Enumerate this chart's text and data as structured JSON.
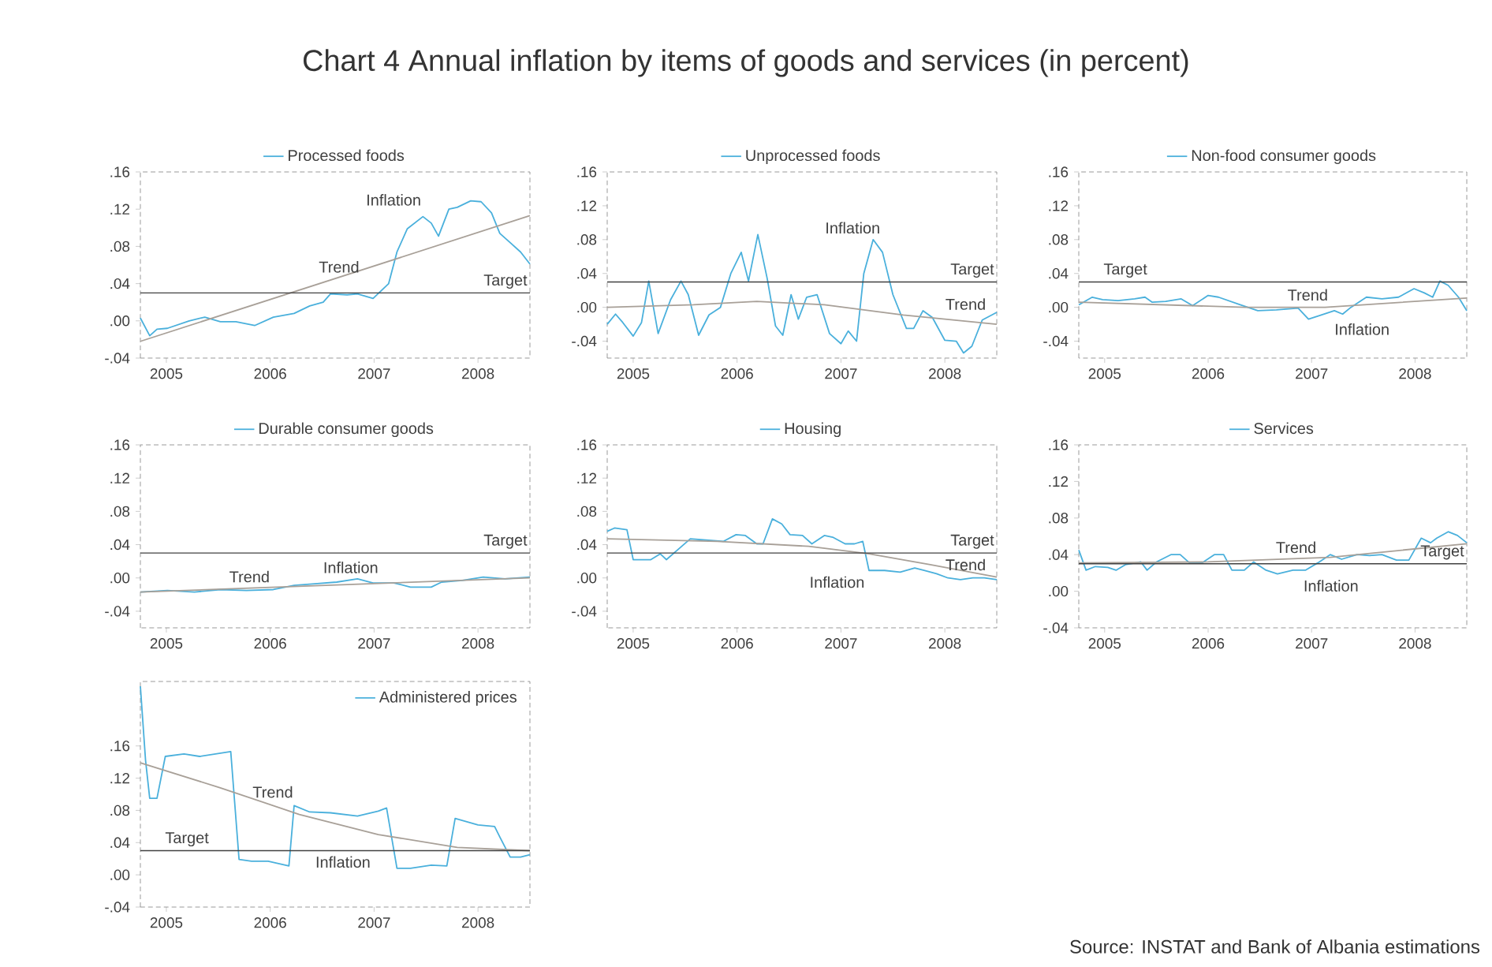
{
  "chart_data": [
    {
      "type": "line",
      "title": "Chart 4 Annual inflation by items of goods and services (in percent)",
      "legend": "top",
      "xlim": [
        2005.25,
        2009.0
      ],
      "ylim": [
        -0.04,
        0.16
      ],
      "xticks": [
        {
          "value": 2005.5,
          "label": "2005"
        },
        {
          "value": 2006.5,
          "label": "2006"
        },
        {
          "value": 2007.5,
          "label": "2007"
        },
        {
          "value": 2008.5,
          "label": "2008"
        }
      ],
      "yticks": [
        {
          "value": -0.04,
          "label": "-.04"
        },
        {
          "value": 0,
          "label": ".00"
        },
        {
          "value": 0.04,
          "label": ".04"
        },
        {
          "value": 0.08,
          "label": ".08"
        },
        {
          "value": 0.12,
          "label": ".12"
        },
        {
          "value": 0.16,
          "label": ".16"
        }
      ],
      "series": [
        {
          "name": "Processed foods",
          "color": "#4ab0dc",
          "x": [
            2005.25,
            2005.34,
            2005.41,
            2005.51,
            2005.72,
            2005.87,
            2006.02,
            2006.17,
            2006.35,
            2006.53,
            2006.73,
            2006.88,
            2007.01,
            2007.08,
            2007.24,
            2007.34,
            2007.49,
            2007.64,
            2007.72,
            2007.82,
            2007.97,
            2008.05,
            2008.12,
            2008.22,
            2008.3,
            2008.43,
            2008.53,
            2008.63,
            2008.71,
            2008.81,
            2008.91,
            2009.0
          ],
          "values": [
            0.003,
            -0.016,
            -0.009,
            -0.008,
            0.0,
            0.004,
            -0.001,
            -0.001,
            -0.005,
            0.004,
            0.008,
            0.016,
            0.02,
            0.029,
            0.028,
            0.029,
            0.024,
            0.04,
            0.074,
            0.099,
            0.112,
            0.105,
            0.091,
            0.12,
            0.122,
            0.129,
            0.128,
            0.116,
            0.094,
            0.084,
            0.074,
            0.061
          ]
        },
        {
          "color": "#a8a098",
          "x": [
            2005.25,
            2009.0
          ],
          "values": [
            -0.022,
            0.113
          ]
        }
      ],
      "ref_lines": [
        {
          "axis": "y",
          "value": 0.03,
          "label": "Target",
          "color": "#404040"
        }
      ],
      "annotations": [
        "Inflation",
        "Trend"
      ]
    },
    {
      "type": "line",
      "legend": "top",
      "xlim": [
        2005.25,
        2009.0
      ],
      "ylim": [
        -0.06,
        0.16
      ],
      "xticks": [
        {
          "value": 2005.5,
          "label": "2005"
        },
        {
          "value": 2006.5,
          "label": "2006"
        },
        {
          "value": 2007.5,
          "label": "2007"
        },
        {
          "value": 2008.5,
          "label": "2008"
        }
      ],
      "yticks": [
        {
          "value": -0.04,
          "label": "-.04"
        },
        {
          "value": 0,
          "label": ".00"
        },
        {
          "value": 0.04,
          "label": ".04"
        },
        {
          "value": 0.08,
          "label": ".08"
        },
        {
          "value": 0.12,
          "label": ".12"
        },
        {
          "value": 0.16,
          "label": ".16"
        }
      ],
      "series": [
        {
          "name": "Unprocessed foods",
          "color": "#4ab0dc",
          "x": [
            2005.25,
            2005.33,
            2005.4,
            2005.5,
            2005.58,
            2005.65,
            2005.74,
            2005.86,
            2005.96,
            2006.03,
            2006.13,
            2006.23,
            2006.34,
            2006.44,
            2006.54,
            2006.61,
            2006.7,
            2006.79,
            2006.87,
            2006.94,
            2007.02,
            2007.09,
            2007.17,
            2007.27,
            2007.39,
            2007.5,
            2007.57,
            2007.65,
            2007.72,
            2007.81,
            2007.9,
            2008.0,
            2008.13,
            2008.2,
            2008.29,
            2008.38,
            2008.5,
            2008.61,
            2008.68,
            2008.76,
            2008.86,
            2009.0
          ],
          "values": [
            -0.02,
            -0.008,
            -0.018,
            -0.034,
            -0.018,
            0.031,
            -0.031,
            0.009,
            0.031,
            0.015,
            -0.033,
            -0.009,
            0.0,
            0.04,
            0.065,
            0.031,
            0.086,
            0.034,
            -0.022,
            -0.033,
            0.015,
            -0.014,
            0.012,
            0.015,
            -0.031,
            -0.043,
            -0.028,
            -0.04,
            0.04,
            0.08,
            0.065,
            0.015,
            -0.025,
            -0.025,
            -0.004,
            -0.012,
            -0.039,
            -0.04,
            -0.054,
            -0.046,
            -0.015,
            -0.006
          ]
        },
        {
          "color": "#a8a098",
          "x": [
            2005.25,
            2006.08,
            2006.69,
            2007.34,
            2008.1,
            2009.0
          ],
          "values": [
            0.0,
            0.003,
            0.007,
            0.003,
            -0.009,
            -0.02
          ]
        }
      ],
      "ref_lines": [
        {
          "axis": "y",
          "value": 0.03,
          "label": "Target",
          "color": "#404040"
        }
      ],
      "annotations": [
        "Inflation",
        "Trend"
      ]
    },
    {
      "type": "line",
      "legend": "top",
      "xlim": [
        2005.25,
        2009.0
      ],
      "ylim": [
        -0.06,
        0.16
      ],
      "xticks": [
        {
          "value": 2005.5,
          "label": "2005"
        },
        {
          "value": 2006.5,
          "label": "2006"
        },
        {
          "value": 2007.5,
          "label": "2007"
        },
        {
          "value": 2008.5,
          "label": "2008"
        }
      ],
      "yticks": [
        {
          "value": -0.04,
          "label": "-.04"
        },
        {
          "value": 0,
          "label": ".00"
        },
        {
          "value": 0.04,
          "label": ".04"
        },
        {
          "value": 0.08,
          "label": ".08"
        },
        {
          "value": 0.12,
          "label": ".12"
        },
        {
          "value": 0.16,
          "label": ".16"
        }
      ],
      "series": [
        {
          "name": "Non-food consumer goods",
          "color": "#4ab0dc",
          "x": [
            2005.25,
            2005.38,
            2005.48,
            2005.63,
            2005.79,
            2005.89,
            2005.96,
            2006.09,
            2006.24,
            2006.35,
            2006.5,
            2006.6,
            2006.81,
            2006.98,
            2007.16,
            2007.37,
            2007.47,
            2007.57,
            2007.72,
            2007.8,
            2007.88,
            2008.03,
            2008.18,
            2008.34,
            2008.49,
            2008.59,
            2008.67,
            2008.74,
            2008.82,
            2008.92,
            2009.0
          ],
          "values": [
            0.003,
            0.012,
            0.009,
            0.008,
            0.01,
            0.012,
            0.006,
            0.007,
            0.01,
            0.002,
            0.014,
            0.012,
            0.003,
            -0.004,
            -0.003,
            -0.001,
            -0.014,
            -0.01,
            -0.004,
            -0.008,
            0.0,
            0.012,
            0.01,
            0.012,
            0.022,
            0.017,
            0.012,
            0.031,
            0.026,
            0.012,
            -0.004
          ]
        },
        {
          "color": "#a8a098",
          "x": [
            2005.25,
            2006.86,
            2007.63,
            2009.0
          ],
          "values": [
            0.006,
            0.0,
            0.0,
            0.011
          ]
        }
      ],
      "ref_lines": [
        {
          "axis": "y",
          "value": 0.03,
          "label": "Target",
          "color": "#404040"
        }
      ],
      "annotations": [
        "Inflation",
        "Trend"
      ]
    },
    {
      "type": "line",
      "legend": "top",
      "xlim": [
        2005.25,
        2009.0
      ],
      "ylim": [
        -0.06,
        0.16
      ],
      "xticks": [
        {
          "value": 2005.5,
          "label": "2005"
        },
        {
          "value": 2006.5,
          "label": "2006"
        },
        {
          "value": 2007.5,
          "label": "2007"
        },
        {
          "value": 2008.5,
          "label": "2008"
        }
      ],
      "yticks": [
        {
          "value": -0.04,
          "label": "-.04"
        },
        {
          "value": 0,
          "label": ".00"
        },
        {
          "value": 0.04,
          "label": ".04"
        },
        {
          "value": 0.08,
          "label": ".08"
        },
        {
          "value": 0.12,
          "label": ".12"
        },
        {
          "value": 0.16,
          "label": ".16"
        }
      ],
      "series": [
        {
          "name": "Durable consumer goods",
          "color": "#4ab0dc",
          "x": [
            2005.25,
            2005.51,
            2005.77,
            2006.02,
            2006.27,
            2006.53,
            2006.73,
            2006.93,
            2007.14,
            2007.34,
            2007.49,
            2007.69,
            2007.85,
            2008.05,
            2008.15,
            2008.35,
            2008.55,
            2008.76,
            2009.0
          ],
          "values": [
            -0.017,
            -0.015,
            -0.017,
            -0.014,
            -0.015,
            -0.014,
            -0.009,
            -0.007,
            -0.005,
            -0.001,
            -0.006,
            -0.006,
            -0.011,
            -0.011,
            -0.005,
            -0.003,
            0.001,
            -0.001,
            0.001
          ]
        },
        {
          "color": "#a8a098",
          "x": [
            2005.25,
            2009.0
          ],
          "values": [
            -0.017,
            0.0
          ]
        }
      ],
      "ref_lines": [
        {
          "axis": "y",
          "value": 0.03,
          "label": "Target",
          "color": "#404040"
        }
      ],
      "annotations": [
        "Trend",
        "Inflation"
      ]
    },
    {
      "type": "line",
      "legend": "top",
      "xlim": [
        2005.25,
        2009.0
      ],
      "ylim": [
        -0.06,
        0.16
      ],
      "xticks": [
        {
          "value": 2005.5,
          "label": "2005"
        },
        {
          "value": 2006.5,
          "label": "2006"
        },
        {
          "value": 2007.5,
          "label": "2007"
        },
        {
          "value": 2008.5,
          "label": "2008"
        }
      ],
      "yticks": [
        {
          "value": -0.04,
          "label": "-.04"
        },
        {
          "value": 0,
          "label": ".00"
        },
        {
          "value": 0.04,
          "label": ".04"
        },
        {
          "value": 0.08,
          "label": ".08"
        },
        {
          "value": 0.12,
          "label": ".12"
        },
        {
          "value": 0.16,
          "label": ".16"
        }
      ],
      "series": [
        {
          "name": "Housing",
          "color": "#4ab0dc",
          "x": [
            2005.25,
            2005.32,
            2005.44,
            2005.5,
            2005.67,
            2005.76,
            2005.82,
            2005.93,
            2006.05,
            2006.25,
            2006.37,
            2006.49,
            2006.58,
            2006.69,
            2006.75,
            2006.84,
            2006.93,
            2007.01,
            2007.13,
            2007.22,
            2007.34,
            2007.42,
            2007.54,
            2007.63,
            2007.71,
            2007.77,
            2007.92,
            2008.07,
            2008.21,
            2008.3,
            2008.42,
            2008.53,
            2008.65,
            2008.77,
            2008.88,
            2009.0
          ],
          "values": [
            0.056,
            0.06,
            0.058,
            0.022,
            0.022,
            0.029,
            0.022,
            0.034,
            0.047,
            0.045,
            0.044,
            0.052,
            0.051,
            0.041,
            0.041,
            0.071,
            0.065,
            0.052,
            0.051,
            0.041,
            0.051,
            0.049,
            0.041,
            0.041,
            0.044,
            0.009,
            0.009,
            0.007,
            0.012,
            0.009,
            0.005,
            0.0,
            -0.002,
            0.0,
            0.0,
            -0.002
          ]
        },
        {
          "color": "#a8a098",
          "x": [
            2005.25,
            2006.31,
            2007.19,
            2007.77,
            2008.36,
            2009.0
          ],
          "values": [
            0.047,
            0.044,
            0.038,
            0.029,
            0.016,
            0.001
          ]
        }
      ],
      "ref_lines": [
        {
          "axis": "y",
          "value": 0.03,
          "label": "Target",
          "color": "#404040"
        }
      ],
      "annotations": [
        "Inflation",
        "Trend"
      ]
    },
    {
      "type": "line",
      "legend": "top",
      "xlim": [
        2005.25,
        2009.0
      ],
      "ylim": [
        -0.04,
        0.16
      ],
      "xticks": [
        {
          "value": 2005.5,
          "label": "2005"
        },
        {
          "value": 2006.5,
          "label": "2006"
        },
        {
          "value": 2007.5,
          "label": "2007"
        },
        {
          "value": 2008.5,
          "label": "2008"
        }
      ],
      "yticks": [
        {
          "value": -0.04,
          "label": "-.04"
        },
        {
          "value": 0,
          "label": ".00"
        },
        {
          "value": 0.04,
          "label": ".04"
        },
        {
          "value": 0.08,
          "label": ".08"
        },
        {
          "value": 0.12,
          "label": ".12"
        },
        {
          "value": 0.16,
          "label": ".16"
        }
      ],
      "series": [
        {
          "name": "Services",
          "color": "#4ab0dc",
          "x": [
            2005.25,
            2005.32,
            2005.41,
            2005.53,
            2005.61,
            2005.7,
            2005.85,
            2005.91,
            2006.0,
            2006.14,
            2006.23,
            2006.32,
            2006.44,
            2006.56,
            2006.65,
            2006.73,
            2006.85,
            2006.94,
            2007.06,
            2007.17,
            2007.32,
            2007.44,
            2007.56,
            2007.68,
            2007.79,
            2007.94,
            2008.06,
            2008.18,
            2008.32,
            2008.44,
            2008.56,
            2008.65,
            2008.71,
            2008.82,
            2008.91,
            2009.0
          ],
          "values": [
            0.045,
            0.023,
            0.027,
            0.026,
            0.023,
            0.029,
            0.032,
            0.023,
            0.032,
            0.04,
            0.04,
            0.031,
            0.031,
            0.04,
            0.04,
            0.023,
            0.023,
            0.032,
            0.023,
            0.019,
            0.023,
            0.023,
            0.031,
            0.04,
            0.035,
            0.04,
            0.039,
            0.04,
            0.034,
            0.034,
            0.058,
            0.053,
            0.058,
            0.065,
            0.061,
            0.053
          ]
        },
        {
          "color": "#a8a098",
          "x": [
            2005.25,
            2006.5,
            2007.68,
            2009.0
          ],
          "values": [
            0.031,
            0.032,
            0.037,
            0.052
          ]
        }
      ],
      "ref_lines": [
        {
          "axis": "y",
          "value": 0.03,
          "label": "Target",
          "color": "#404040"
        }
      ],
      "annotations": [
        "Trend",
        "Inflation"
      ]
    },
    {
      "type": "line",
      "legend": "top right",
      "xlim": [
        2005.25,
        2009.0
      ],
      "ylim": [
        -0.04,
        0.24
      ],
      "xticks": [
        {
          "value": 2005.5,
          "label": "2005"
        },
        {
          "value": 2006.5,
          "label": "2006"
        },
        {
          "value": 2007.5,
          "label": "2007"
        },
        {
          "value": 2008.5,
          "label": "2008"
        }
      ],
      "yticks": [
        {
          "value": -0.04,
          "label": "-.04"
        },
        {
          "value": 0,
          "label": ".00"
        },
        {
          "value": 0.04,
          "label": ".04"
        },
        {
          "value": 0.08,
          "label": ".08"
        },
        {
          "value": 0.12,
          "label": ".12"
        },
        {
          "value": 0.16,
          "label": ".16"
        }
      ],
      "series": [
        {
          "name": "Administered prices",
          "color": "#4ab0dc",
          "x": [
            2005.25,
            2005.3,
            2005.34,
            2005.41,
            2005.49,
            2005.67,
            2005.82,
            2005.97,
            2006.12,
            2006.2,
            2006.32,
            2006.48,
            2006.68,
            2006.73,
            2006.88,
            2007.08,
            2007.34,
            2007.54,
            2007.62,
            2007.72,
            2007.85,
            2008.05,
            2008.2,
            2008.28,
            2008.5,
            2008.66,
            2008.71,
            2008.81,
            2008.91,
            2009.0
          ],
          "values": [
            0.234,
            0.142,
            0.095,
            0.095,
            0.147,
            0.15,
            0.147,
            0.15,
            0.153,
            0.019,
            0.017,
            0.017,
            0.011,
            0.086,
            0.078,
            0.077,
            0.073,
            0.079,
            0.083,
            0.008,
            0.008,
            0.012,
            0.011,
            0.07,
            0.062,
            0.06,
            0.047,
            0.022,
            0.022,
            0.025
          ]
        },
        {
          "color": "#a8a098",
          "x": [
            2005.25,
            2006.02,
            2006.78,
            2007.54,
            2008.3,
            2009.0
          ],
          "values": [
            0.139,
            0.108,
            0.075,
            0.05,
            0.034,
            0.03
          ]
        }
      ],
      "ref_lines": [
        {
          "axis": "y",
          "value": 0.03,
          "label": "Target",
          "color": "#404040"
        }
      ],
      "annotations": [
        "Trend",
        "Inflation",
        "Source: INSTAT and Bank of Albania estimations"
      ]
    }
  ]
}
